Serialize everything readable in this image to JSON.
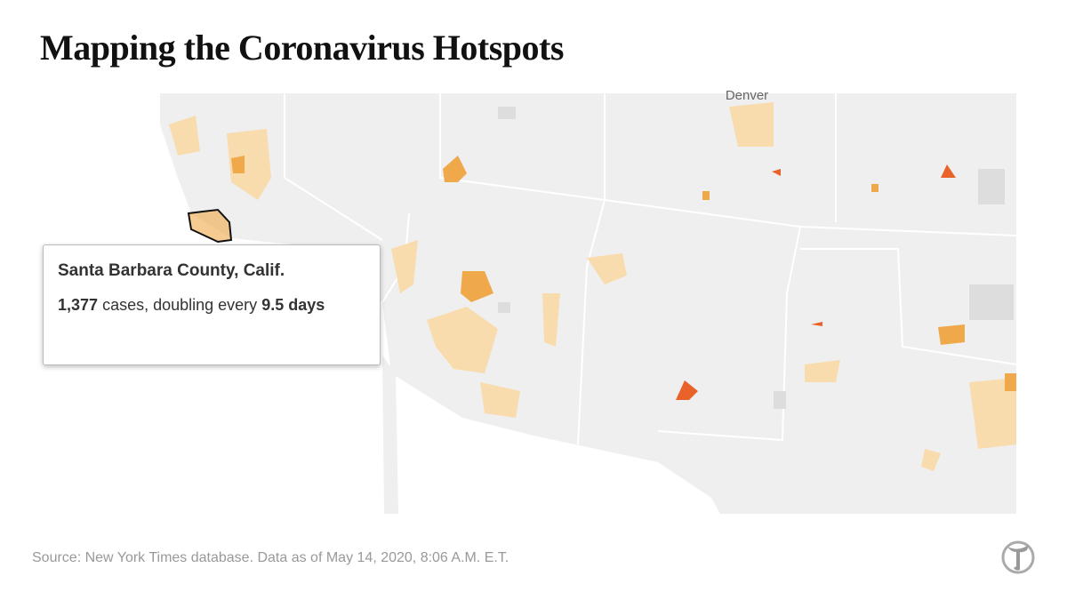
{
  "header": {
    "title": "Mapping the Coronavirus Hotspots"
  },
  "map": {
    "labels": [
      "Denver"
    ]
  },
  "tooltip": {
    "county": "Santa Barbara County, Calif.",
    "cases": "1,377",
    "cases_text": "cases, doubling every",
    "doubling": "9.5",
    "doubling_unit": "days"
  },
  "footer": {
    "source": "Source: New York Times database.  Data as of May 14, 2020, 8:06 A.M. E.T."
  }
}
